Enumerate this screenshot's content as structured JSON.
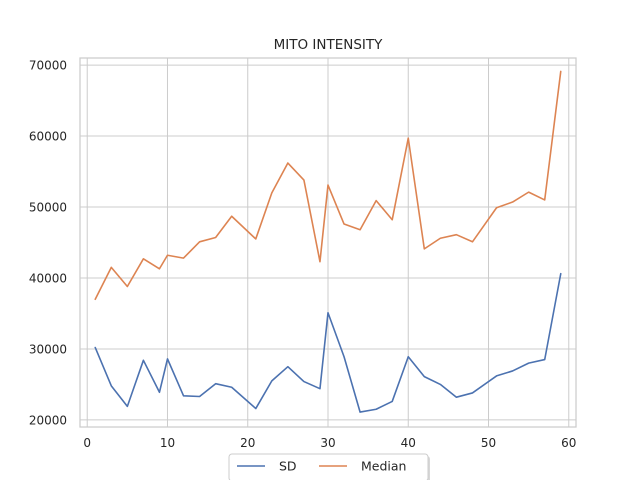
{
  "chart_data": {
    "type": "line",
    "title": "MITO INTENSITY",
    "xlabel": "",
    "ylabel": "",
    "xlim": [
      -0.9,
      60.9
    ],
    "ylim": [
      19000,
      71000
    ],
    "xticks": [
      0,
      10,
      20,
      30,
      40,
      50,
      60
    ],
    "yticks": [
      20000,
      30000,
      40000,
      50000,
      60000,
      70000
    ],
    "xtick_labels": [
      "0",
      "10",
      "20",
      "30",
      "40",
      "50",
      "60"
    ],
    "ytick_labels": [
      "20000",
      "30000",
      "40000",
      "50000",
      "60000",
      "70000"
    ],
    "grid": true,
    "legend_position": "lower-center",
    "x": [
      1,
      3,
      5,
      7,
      9,
      10,
      12,
      14,
      16,
      18,
      21,
      23,
      25,
      27,
      29,
      30,
      32,
      34,
      36,
      38,
      40,
      42,
      44,
      46,
      48,
      51,
      53,
      55,
      57,
      59
    ],
    "series": [
      {
        "name": "SD",
        "color": "#4c72b0",
        "values": [
          30200,
          24800,
          21900,
          28400,
          23900,
          28600,
          23400,
          23300,
          25100,
          24600,
          21600,
          25500,
          27500,
          25400,
          24400,
          35100,
          28900,
          21100,
          21500,
          22600,
          28900,
          26100,
          25000,
          23200,
          23800,
          26200,
          26900,
          28000,
          28500,
          40600
        ]
      },
      {
        "name": "Median",
        "color": "#dd8452",
        "values": [
          37000,
          41500,
          38800,
          42700,
          41300,
          43200,
          42800,
          45100,
          45700,
          48700,
          45500,
          52000,
          56200,
          53800,
          42300,
          53100,
          47600,
          46800,
          50900,
          48200,
          59700,
          44100,
          45600,
          46100,
          45100,
          49900,
          50700,
          52100,
          51000,
          69100
        ]
      }
    ]
  }
}
